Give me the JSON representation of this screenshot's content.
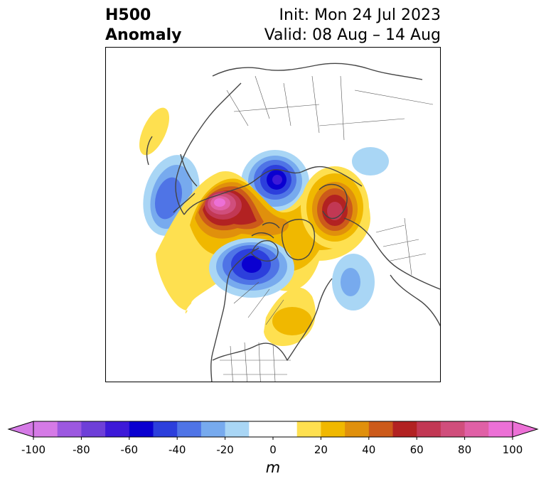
{
  "title": {
    "line1": "H500",
    "line2": "Anomaly"
  },
  "info": {
    "init": "Init: Mon 24 Jul 2023",
    "valid": "Valid: 08 Aug – 14 Aug"
  },
  "colorbar": {
    "unit": "m",
    "ticks": [
      "-100",
      "-80",
      "-60",
      "-40",
      "-20",
      "0",
      "20",
      "40",
      "60",
      "80",
      "100"
    ],
    "tick_values": [
      -100,
      -80,
      -60,
      -40,
      -20,
      0,
      20,
      40,
      60,
      80,
      100
    ],
    "bounds": [
      -100,
      100
    ],
    "step": 10,
    "extend": "both",
    "colors": [
      "#d57ae6",
      "#9c58e0",
      "#6e3fd8",
      "#3d19d8",
      "#0a00d0",
      "#2c3fdc",
      "#4f74e6",
      "#77aaee",
      "#a9d6f5",
      "#ffffff",
      "#ffffff",
      "#fee050",
      "#f0b800",
      "#e0900c",
      "#cc5a1a",
      "#b22222",
      "#c23854",
      "#d04e7c",
      "#e060a6",
      "#ec70d6"
    ],
    "under_color": "#d57ae6",
    "over_color": "#ec70d6"
  },
  "map": {
    "projection": "polar-stereographic",
    "region": "North America / Arctic",
    "anomaly_centers": [
      {
        "sign": "positive",
        "value": 100,
        "region": "Alaska / Beaufort"
      },
      {
        "sign": "positive",
        "value": 70,
        "region": "Scandinavia / Barents"
      },
      {
        "sign": "positive",
        "value": 30,
        "region": "Eastern United States"
      },
      {
        "sign": "negative",
        "value": -70,
        "region": "Kara Sea"
      },
      {
        "sign": "negative",
        "value": -70,
        "region": "Western Canada"
      },
      {
        "sign": "negative",
        "value": -40,
        "region": "Kamchatka / NW Pacific"
      },
      {
        "sign": "negative",
        "value": -30,
        "region": "North Atlantic"
      }
    ]
  }
}
